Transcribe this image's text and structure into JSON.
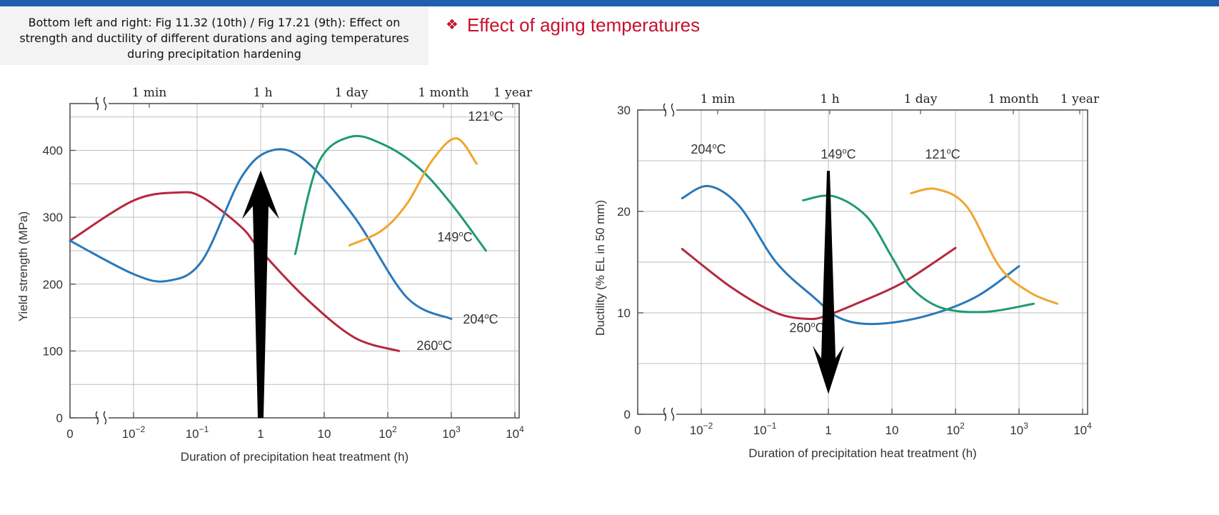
{
  "caption": "Bottom left and right: Fig 11.32 (10th) / Fig 17.21 (9th):  Effect on strength and ductility of different durations and aging temperatures during precipitation hardening",
  "title": {
    "bullet": "❖",
    "text": "Effect of aging temperatures"
  },
  "colors": {
    "accent_bar": "#1f5fb0",
    "title_red": "#c8102e",
    "260C": "#b5283f",
    "204C": "#2a79b9",
    "149C": "#1f9a74",
    "121C": "#f0a630",
    "arrow": "#000000"
  },
  "chart_data": [
    {
      "type": "line",
      "log_x": true,
      "xlabel": "Duration of precipitation heat treatment (h)",
      "ylabel": "Yield strength (MPa)",
      "x_ticks": [
        "0",
        "10−2",
        "10−1",
        "1",
        "10",
        "102",
        "103",
        "104"
      ],
      "y_ticks": [
        "0",
        "100",
        "200",
        "300",
        "400"
      ],
      "top_ticks": [
        "1 min",
        "1 h",
        "1 day",
        "1 month",
        "1 year"
      ],
      "ylim": [
        0,
        470
      ],
      "grid": true,
      "series": [
        {
          "name": "260°C",
          "x": [
            0,
            0.01,
            0.05,
            0.12,
            0.5,
            1,
            5,
            30,
            150
          ],
          "y": [
            265,
            325,
            337,
            330,
            285,
            250,
            180,
            120,
            100
          ]
        },
        {
          "name": "204°C",
          "x": [
            0,
            0.01,
            0.035,
            0.12,
            0.5,
            1.5,
            5,
            30,
            200,
            1000
          ],
          "y": [
            265,
            215,
            205,
            235,
            360,
            400,
            385,
            300,
            180,
            148
          ]
        },
        {
          "name": "149°C",
          "x": [
            3.5,
            8,
            25,
            80,
            300,
            1000,
            3500
          ],
          "y": [
            245,
            380,
            420,
            410,
            375,
            320,
            250
          ]
        },
        {
          "name": "121°C",
          "x": [
            25,
            80,
            200,
            500,
            1200,
            2500
          ],
          "y": [
            258,
            280,
            320,
            385,
            418,
            380
          ]
        }
      ],
      "annotations": [
        {
          "text": "121°C"
        },
        {
          "text": "149°C"
        },
        {
          "text": "204°C"
        },
        {
          "text": "260°C"
        }
      ],
      "arrow": {
        "direction": "up",
        "x": 1,
        "from": 0,
        "to": 370
      }
    },
    {
      "type": "line",
      "log_x": true,
      "xlabel": "Duration of precipitation heat treatment (h)",
      "ylabel": "Ductility (% EL in 50 mm)",
      "x_ticks": [
        "0",
        "10−2",
        "10−1",
        "1",
        "10",
        "102",
        "103",
        "104"
      ],
      "y_ticks": [
        "0",
        "10",
        "20",
        "30"
      ],
      "top_ticks": [
        "1 min",
        "1 h",
        "1 day",
        "1 month",
        "1 year"
      ],
      "ylim": [
        0,
        30
      ],
      "grid": true,
      "series": [
        {
          "name": "260°C",
          "x": [
            0.005,
            0.03,
            0.15,
            0.5,
            1,
            3,
            15,
            100
          ],
          "y": [
            16.3,
            12.5,
            10,
            9.4,
            9.8,
            11,
            13,
            16.4
          ]
        },
        {
          "name": "204°C",
          "x": [
            0.005,
            0.013,
            0.04,
            0.15,
            0.6,
            1.5,
            5,
            30,
            200,
            1000
          ],
          "y": [
            21.3,
            22.5,
            20.5,
            15,
            11.5,
            9.5,
            8.9,
            9.6,
            11.5,
            14.6
          ]
        },
        {
          "name": "149°C",
          "x": [
            0.4,
            1.2,
            4,
            10,
            20,
            60,
            300,
            1700
          ],
          "y": [
            21.1,
            21.5,
            19.5,
            15.5,
            12.5,
            10.5,
            10.1,
            10.9
          ]
        },
        {
          "name": "121°C",
          "x": [
            20,
            50,
            150,
            500,
            1500,
            4000
          ],
          "y": [
            21.8,
            22.2,
            20.5,
            14.5,
            12,
            10.9
          ]
        }
      ],
      "annotations": [
        {
          "text": "204°C"
        },
        {
          "text": "149°C"
        },
        {
          "text": "121°C"
        },
        {
          "text": "260°C"
        }
      ],
      "arrow": {
        "direction": "down",
        "x": 1,
        "from": 24,
        "to": 2
      }
    }
  ]
}
